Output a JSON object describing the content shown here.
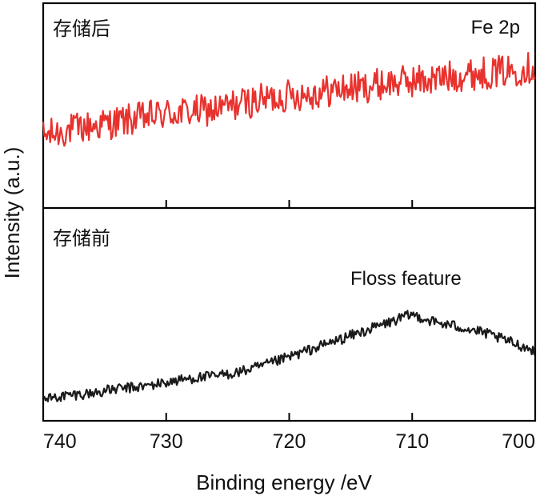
{
  "chart_data": {
    "type": "line",
    "xlabel": "Binding energy /eV",
    "ylabel": "Intensity (a.u.)",
    "xlim": [
      740,
      700
    ],
    "xticks": [
      740,
      730,
      720,
      710,
      700
    ],
    "xtick_labels": [
      "740",
      "730",
      "720",
      "710",
      "700"
    ],
    "ylim": [
      0,
      1
    ],
    "panels": [
      {
        "id": "top",
        "label": "存储后",
        "annotation": "Fe 2p",
        "series": [
          {
            "name": "存储后",
            "color": "#e8322e",
            "x": [
              740,
              738,
              736,
              734,
              732,
              730,
              728,
              726,
              724,
              722,
              720,
              718,
              716,
              714,
              712,
              710,
              708,
              706,
              704,
              702,
              700
            ],
            "y": [
              0.35,
              0.38,
              0.4,
              0.42,
              0.44,
              0.46,
              0.47,
              0.48,
              0.51,
              0.53,
              0.55,
              0.56,
              0.58,
              0.59,
              0.61,
              0.62,
              0.63,
              0.65,
              0.66,
              0.67,
              0.69
            ],
            "noise": 0.08
          }
        ]
      },
      {
        "id": "bottom",
        "label": "存储前",
        "annotation": "Floss feature",
        "series": [
          {
            "name": "存储前",
            "color": "#1a1a1a",
            "x": [
              740,
              738,
              736,
              734,
              732,
              730,
              728,
              726,
              724,
              722,
              720,
              718,
              716,
              714,
              712,
              710,
              708,
              706,
              704,
              702,
              700
            ],
            "y": [
              0.1,
              0.12,
              0.13,
              0.15,
              0.16,
              0.18,
              0.2,
              0.21,
              0.23,
              0.26,
              0.3,
              0.34,
              0.38,
              0.42,
              0.46,
              0.5,
              0.46,
              0.44,
              0.41,
              0.37,
              0.33
            ],
            "noise": 0.025
          }
        ]
      }
    ]
  }
}
